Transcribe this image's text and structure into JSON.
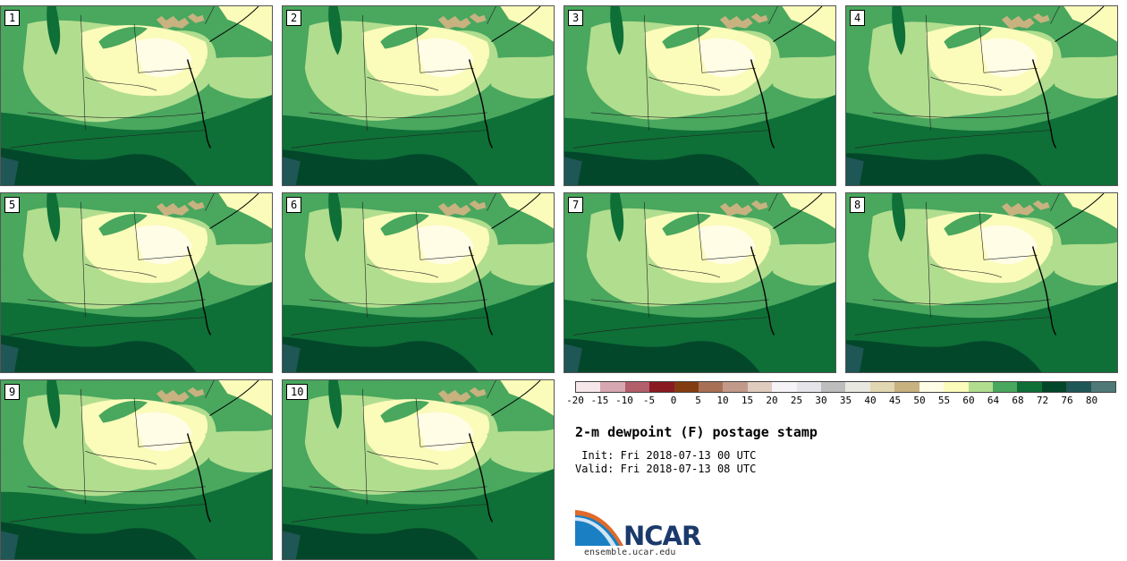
{
  "panels": [
    {
      "label": "1"
    },
    {
      "label": "2"
    },
    {
      "label": "3"
    },
    {
      "label": "4"
    },
    {
      "label": "5"
    },
    {
      "label": "6"
    },
    {
      "label": "7"
    },
    {
      "label": "8"
    },
    {
      "label": "9"
    },
    {
      "label": "10"
    }
  ],
  "colorbar": {
    "colors": [
      "#f6e8ea",
      "#d7a7b1",
      "#b35e6b",
      "#8a1a22",
      "#833c0f",
      "#a87055",
      "#c29a8a",
      "#e0cbbf",
      "#f6f3f7",
      "#e4e4ea",
      "#bdbdbd",
      "#e8e8e0",
      "#e2d7b3",
      "#c8b280",
      "#fffde6",
      "#fbfbba",
      "#b1dd8f",
      "#49a75e",
      "#0e6f37",
      "#03472a",
      "#1f5656",
      "#4e7977"
    ],
    "ticks": [
      "-20",
      "-15",
      "-10",
      "-5",
      "0",
      "5",
      "10",
      "15",
      "20",
      "25",
      "30",
      "35",
      "40",
      "45",
      "50",
      "55",
      "60",
      "64",
      "68",
      "72",
      "76",
      "80"
    ]
  },
  "title": "2-m dewpoint (F) postage stamp",
  "init": " Init: Fri 2018-07-13 00 UTC",
  "valid": "Valid: Fri 2018-07-13 08 UTC",
  "logo": {
    "text": "NCAR",
    "url": "ensemble.ucar.edu"
  },
  "map_colors": {
    "dark": "#03472a",
    "deep": "#0e6f37",
    "mid": "#49a75e",
    "light": "#b1dd8f",
    "pale": "#fbfbba",
    "cream": "#fffde6",
    "tan": "#c8b280",
    "water": "#1f5656"
  }
}
